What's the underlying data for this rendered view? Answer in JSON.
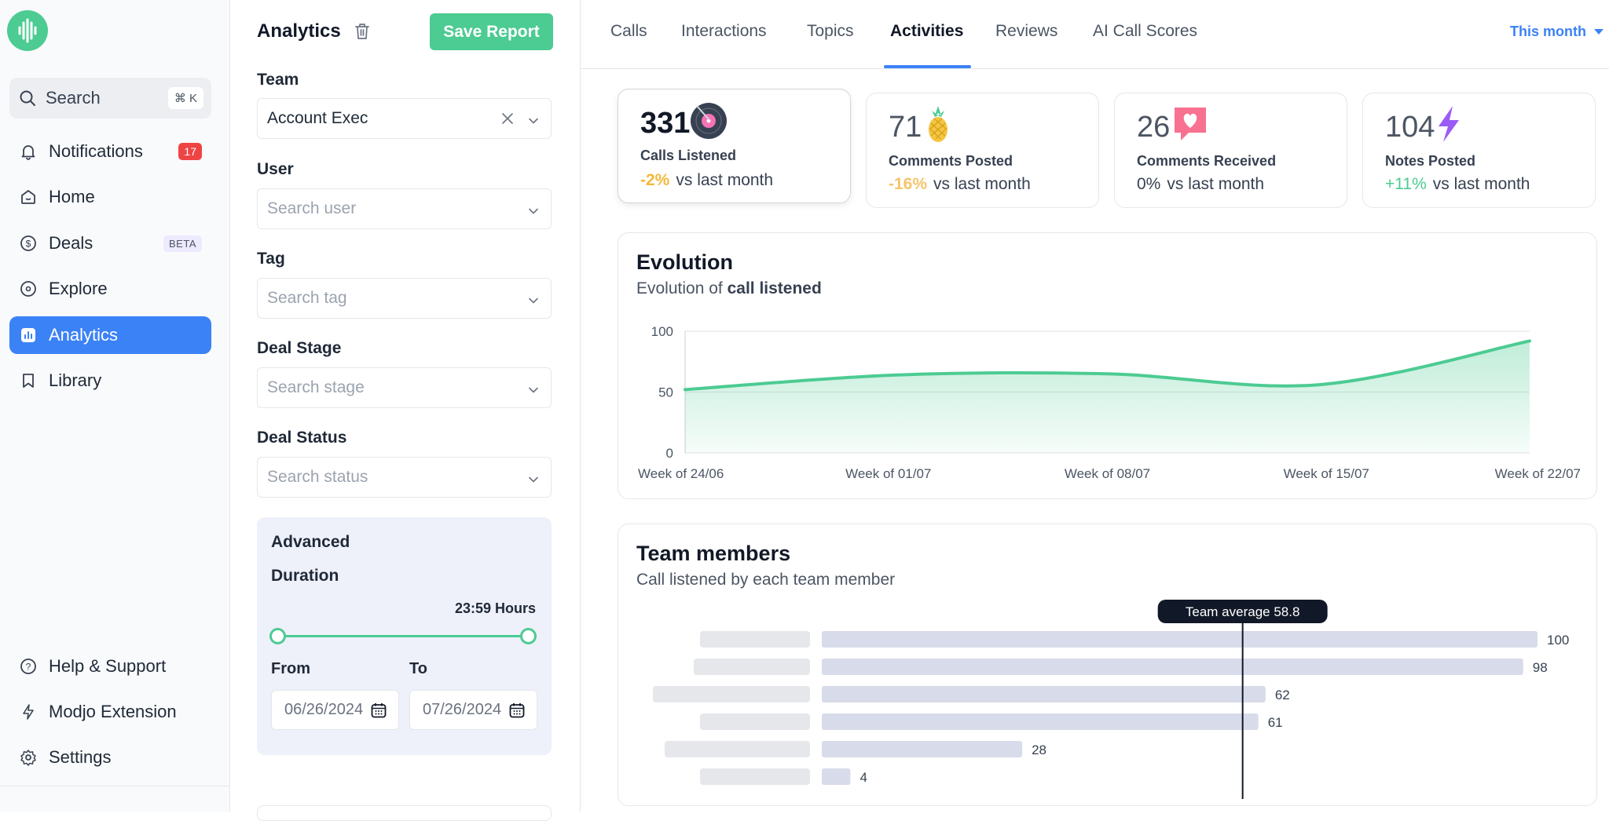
{
  "sidebar": {
    "search_label": "Search",
    "search_shortcut": "⌘ K",
    "items": [
      {
        "label": "Notifications",
        "badge": "17"
      },
      {
        "label": "Home"
      },
      {
        "label": "Deals",
        "badge": "BETA"
      },
      {
        "label": "Explore"
      },
      {
        "label": "Analytics",
        "active": true
      },
      {
        "label": "Library"
      }
    ],
    "bottom_items": [
      {
        "label": "Help & Support"
      },
      {
        "label": "Modjo Extension"
      },
      {
        "label": "Settings"
      }
    ]
  },
  "filters": {
    "title": "Analytics",
    "save_label": "Save Report",
    "team_label": "Team",
    "team_value": "Account Exec",
    "user_label": "User",
    "user_placeholder": "Search user",
    "tag_label": "Tag",
    "tag_placeholder": "Search tag",
    "stage_label": "Deal Stage",
    "stage_placeholder": "Search stage",
    "status_label": "Deal Status",
    "status_placeholder": "Search status",
    "advanced": {
      "title": "Advanced",
      "duration_label": "Duration",
      "duration_value": "23:59 Hours",
      "from_label": "From",
      "to_label": "To",
      "from_value": "06/26/2024",
      "to_value": "07/26/2024"
    }
  },
  "tabs": {
    "items": [
      "Calls",
      "Interactions",
      "Topics",
      "Activities",
      "Reviews",
      "AI Call Scores"
    ],
    "active": "Activities",
    "period": "This month"
  },
  "stats": [
    {
      "value": "331",
      "label": "Calls Listened",
      "delta": "-2%",
      "delta_color": "#f5b83d",
      "suffix": "vs last month"
    },
    {
      "value": "71",
      "label": "Comments Posted",
      "delta": "-16%",
      "delta_color": "#f5c46b",
      "suffix": "vs last month"
    },
    {
      "value": "26",
      "label": "Comments Received",
      "delta": "0%",
      "delta_color": "#374151",
      "suffix": "vs last month"
    },
    {
      "value": "104",
      "label": "Notes Posted",
      "delta": "+11%",
      "delta_color": "#4ccb92",
      "suffix": "vs last month"
    }
  ],
  "evolution": {
    "title": "Evolution",
    "subtitle_prefix": "Evolution of",
    "subtitle_bold": "call listened"
  },
  "team": {
    "title": "Team members",
    "subtitle": "Call listened by each team member",
    "average_label": "Team average 58.8"
  },
  "chart_data": [
    {
      "type": "area",
      "title": "Evolution",
      "x": [
        "Week of 24/06",
        "Week of 01/07",
        "Week of 08/07",
        "Week of 15/07",
        "Week of 22/07"
      ],
      "values": [
        52,
        64,
        65,
        56,
        92
      ],
      "ylim": [
        0,
        100
      ],
      "yticks": [
        0,
        50,
        100
      ],
      "grid": true,
      "color": "#4ccb92"
    },
    {
      "type": "bar",
      "orientation": "horizontal",
      "title": "Team members",
      "values": [
        100,
        98,
        62,
        61,
        28,
        4
      ],
      "average": 58.8,
      "xlim": [
        0,
        100
      ],
      "bar_color": "#d8dbe9",
      "average_color": "#111827"
    }
  ],
  "colors": {
    "accent": "#3b82f6",
    "brand_green": "#4ccb92",
    "notification_red": "#ef4444"
  }
}
